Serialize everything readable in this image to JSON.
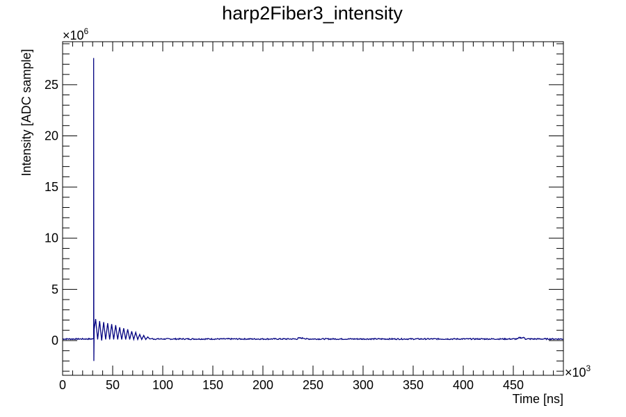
{
  "chart_data": {
    "type": "line",
    "title": "harp2Fiber3_intensity",
    "xlabel": "Time [ns]",
    "ylabel": "Intensity [ADC sample]",
    "x_multiplier": "×10",
    "x_exponent": "3",
    "y_multiplier": "×10",
    "y_exponent": "6",
    "xlim": [
      0,
      500
    ],
    "ylim": [
      -3.4,
      29.2
    ],
    "x_ticks": [
      0,
      50,
      100,
      150,
      200,
      250,
      300,
      350,
      400,
      450
    ],
    "y_ticks": [
      0,
      5,
      10,
      15,
      20,
      25
    ],
    "line_color": "#000080",
    "grid": false,
    "series": [
      {
        "peak": {
          "x": 31,
          "y_max": 27.6,
          "y_min": -2.0
        },
        "after_pulse_x": [
          31.5,
          33,
          35,
          37,
          39,
          41,
          43,
          45,
          47,
          49,
          51,
          53,
          55,
          57,
          59,
          61,
          63,
          65,
          67,
          69,
          71,
          73,
          75,
          77,
          79,
          81,
          83,
          85,
          87,
          90
        ],
        "after_pulse_y": [
          1.1,
          2.1,
          0.1,
          1.9,
          0.0,
          1.8,
          0.1,
          1.7,
          0.1,
          1.6,
          0.1,
          1.5,
          0.1,
          1.3,
          0.1,
          1.2,
          0.1,
          1.1,
          0.1,
          0.9,
          0.1,
          0.8,
          0.1,
          0.6,
          0.1,
          0.5,
          0.1,
          0.35,
          0.15,
          0.2
        ],
        "baseline_level": 0.15,
        "baseline_noise": 0.06
      }
    ]
  }
}
